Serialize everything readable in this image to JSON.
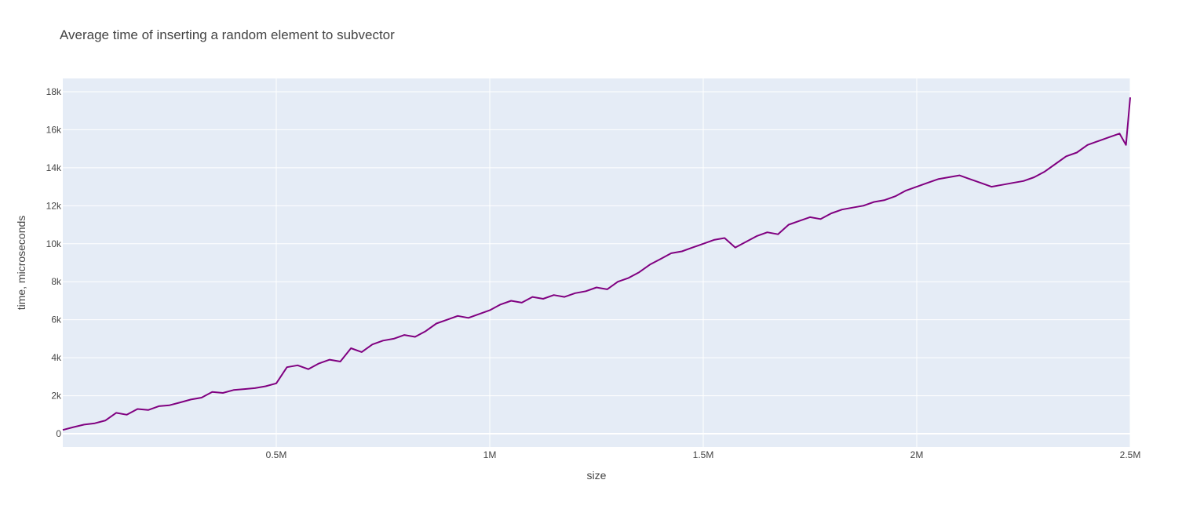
{
  "chart_data": {
    "type": "line",
    "title": "Average time of inserting a random element to subvector",
    "xlabel": "size",
    "ylabel": "time, microseconds",
    "xlim": [
      0,
      2500000
    ],
    "ylim": [
      -700,
      18700
    ],
    "x_ticks": [
      {
        "value": 500000,
        "label": "0.5M"
      },
      {
        "value": 1000000,
        "label": "1M"
      },
      {
        "value": 1500000,
        "label": "1.5M"
      },
      {
        "value": 2000000,
        "label": "2M"
      },
      {
        "value": 2500000,
        "label": "2.5M"
      }
    ],
    "y_ticks": [
      {
        "value": 0,
        "label": "0"
      },
      {
        "value": 2000,
        "label": "2k"
      },
      {
        "value": 4000,
        "label": "4k"
      },
      {
        "value": 6000,
        "label": "6k"
      },
      {
        "value": 8000,
        "label": "8k"
      },
      {
        "value": 10000,
        "label": "10k"
      },
      {
        "value": 12000,
        "label": "12k"
      },
      {
        "value": 14000,
        "label": "14k"
      },
      {
        "value": 16000,
        "label": "16k"
      },
      {
        "value": 18000,
        "label": "18k"
      }
    ],
    "grid": true,
    "colors": {
      "line": "#800080",
      "plot_bg": "#e5ecf6",
      "grid": "#ffffff",
      "text": "#444444"
    },
    "series": [
      {
        "x": [
          0,
          25000,
          50000,
          75000,
          100000,
          125000,
          150000,
          175000,
          200000,
          225000,
          250000,
          275000,
          300000,
          325000,
          350000,
          375000,
          400000,
          425000,
          450000,
          475000,
          500000,
          525000,
          550000,
          575000,
          600000,
          625000,
          650000,
          675000,
          700000,
          725000,
          750000,
          775000,
          800000,
          825000,
          850000,
          875000,
          900000,
          925000,
          950000,
          975000,
          1000000,
          1025000,
          1050000,
          1075000,
          1100000,
          1125000,
          1150000,
          1175000,
          1200000,
          1225000,
          1250000,
          1275000,
          1300000,
          1325000,
          1350000,
          1375000,
          1400000,
          1425000,
          1450000,
          1475000,
          1500000,
          1525000,
          1550000,
          1575000,
          1600000,
          1625000,
          1650000,
          1675000,
          1700000,
          1725000,
          1750000,
          1775000,
          1800000,
          1825000,
          1850000,
          1875000,
          1900000,
          1925000,
          1950000,
          1975000,
          2000000,
          2025000,
          2050000,
          2075000,
          2100000,
          2125000,
          2150000,
          2175000,
          2200000,
          2225000,
          2250000,
          2275000,
          2300000,
          2325000,
          2350000,
          2375000,
          2400000,
          2425000,
          2450000,
          2475000,
          2490000,
          2500000
        ],
        "values": [
          200,
          350,
          480,
          550,
          700,
          1100,
          1000,
          1300,
          1250,
          1450,
          1500,
          1650,
          1800,
          1900,
          2200,
          2150,
          2300,
          2350,
          2400,
          2500,
          2650,
          3500,
          3600,
          3400,
          3700,
          3900,
          3800,
          4500,
          4300,
          4700,
          4900,
          5000,
          5200,
          5100,
          5400,
          5800,
          6000,
          6200,
          6100,
          6300,
          6500,
          6800,
          7000,
          6900,
          7200,
          7100,
          7300,
          7200,
          7400,
          7500,
          7700,
          7600,
          8000,
          8200,
          8500,
          8900,
          9200,
          9500,
          9600,
          9800,
          10000,
          10200,
          10300,
          9800,
          10100,
          10400,
          10600,
          10500,
          11000,
          11200,
          11400,
          11300,
          11600,
          11800,
          11900,
          12000,
          12200,
          12300,
          12500,
          12800,
          13000,
          13200,
          13400,
          13500,
          13600,
          13400,
          13200,
          13000,
          13100,
          13200,
          13300,
          13500,
          13800,
          14200,
          14600,
          14800,
          15200,
          15400,
          15600,
          15800,
          15200,
          17700
        ]
      }
    ]
  }
}
